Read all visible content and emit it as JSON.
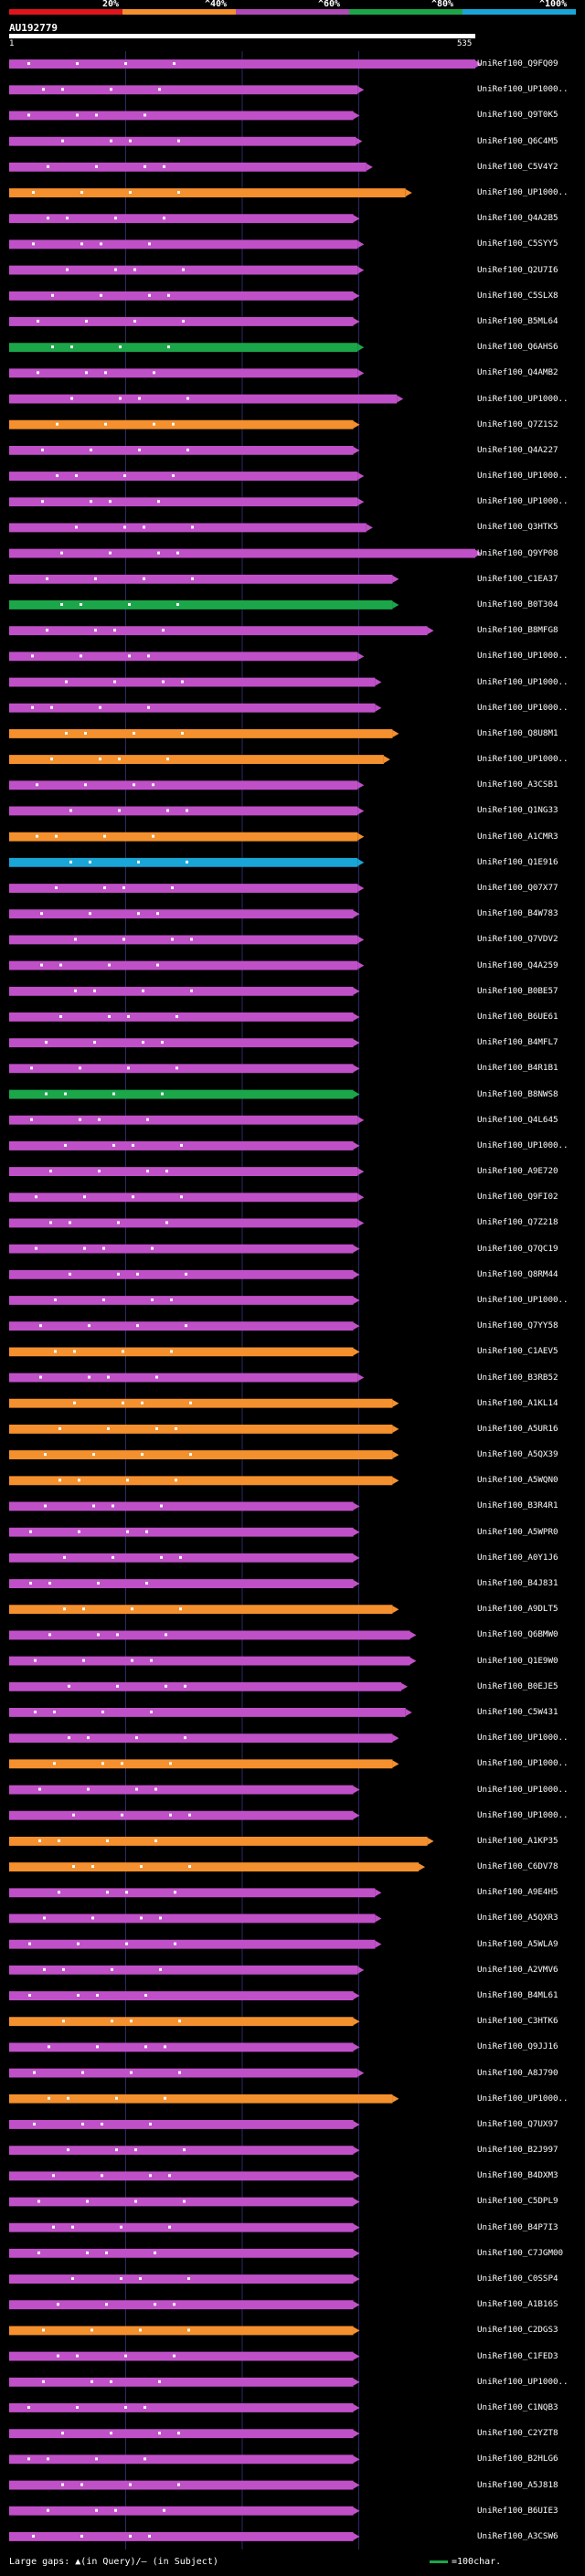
{
  "legend": {
    "percent_labels": [
      "20%",
      "^40%",
      "^60%",
      "^80%",
      "^100%"
    ],
    "colors": [
      "#e0151b",
      "#f4902e",
      "#b04ab6",
      "#1ca64a",
      "#19a6d6"
    ]
  },
  "query": {
    "name": "AU192779",
    "start": "1",
    "end": "535"
  },
  "footer": {
    "gaps_label": "Large gaps:",
    "query_gap": "(in Query)",
    "subject_gap": "(in Subject)",
    "separator": "/",
    "scale_label": "=100char."
  },
  "chart_data": {
    "type": "alignment",
    "query_length": 535,
    "hits": [
      {
        "label": "UniRef100_Q9FQ09",
        "color": "#c050c8",
        "end": 535
      },
      {
        "label": "UniRef100_UP1000..",
        "color": "#c050c8",
        "end": 400
      },
      {
        "label": "UniRef100_Q9T0K5",
        "color": "#c050c8",
        "end": 395
      },
      {
        "label": "UniRef100_Q6C4M5",
        "color": "#c050c8",
        "end": 398
      },
      {
        "label": "UniRef100_C5V4Y2",
        "color": "#c050c8",
        "end": 410
      },
      {
        "label": "UniRef100_UP1000..",
        "color": "#f4902e",
        "end": 455
      },
      {
        "label": "UniRef100_Q4A2B5",
        "color": "#c050c8",
        "end": 395
      },
      {
        "label": "UniRef100_C5SYY5",
        "color": "#c050c8",
        "end": 400
      },
      {
        "label": "UniRef100_Q2U7I6",
        "color": "#c050c8",
        "end": 400
      },
      {
        "label": "UniRef100_C5SLX8",
        "color": "#c050c8",
        "end": 395
      },
      {
        "label": "UniRef100_B5ML64",
        "color": "#c050c8",
        "end": 395
      },
      {
        "label": "UniRef100_Q6AHS6",
        "color": "#1ca64a",
        "end": 400
      },
      {
        "label": "UniRef100_Q4AMB2",
        "color": "#c050c8",
        "end": 400
      },
      {
        "label": "UniRef100_UP1000..",
        "color": "#c050c8",
        "end": 445
      },
      {
        "label": "UniRef100_Q7Z1S2",
        "color": "#f4902e",
        "end": 395
      },
      {
        "label": "UniRef100_Q4A227",
        "color": "#c050c8",
        "end": 395
      },
      {
        "label": "UniRef100_UP1000..",
        "color": "#c050c8",
        "end": 400
      },
      {
        "label": "UniRef100_UP1000..",
        "color": "#c050c8",
        "end": 400
      },
      {
        "label": "UniRef100_Q3HTK5",
        "color": "#c050c8",
        "end": 410
      },
      {
        "label": "UniRef100_Q9YP08",
        "color": "#c050c8",
        "end": 535
      },
      {
        "label": "UniRef100_C1EA37",
        "color": "#c050c8",
        "end": 440
      },
      {
        "label": "UniRef100_B0T304",
        "color": "#1ca64a",
        "end": 440
      },
      {
        "label": "UniRef100_B8MFG8",
        "color": "#c050c8",
        "end": 480
      },
      {
        "label": "UniRef100_UP1000..",
        "color": "#c050c8",
        "end": 400
      },
      {
        "label": "UniRef100_UP1000..",
        "color": "#c050c8",
        "end": 420
      },
      {
        "label": "UniRef100_UP1000..",
        "color": "#c050c8",
        "end": 420
      },
      {
        "label": "UniRef100_Q8U8M1",
        "color": "#f4902e",
        "end": 440
      },
      {
        "label": "UniRef100_UP1000..",
        "color": "#f4902e",
        "end": 430
      },
      {
        "label": "UniRef100_A3CSB1",
        "color": "#c050c8",
        "end": 400
      },
      {
        "label": "UniRef100_Q1NG33",
        "color": "#c050c8",
        "end": 400
      },
      {
        "label": "UniRef100_A1CMR3",
        "color": "#f4902e",
        "end": 400
      },
      {
        "label": "UniRef100_Q1E916",
        "color": "#19a6d6",
        "end": 400
      },
      {
        "label": "UniRef100_Q07X77",
        "color": "#c050c8",
        "end": 400
      },
      {
        "label": "UniRef100_B4W783",
        "color": "#c050c8",
        "end": 395
      },
      {
        "label": "UniRef100_Q7VDV2",
        "color": "#c050c8",
        "end": 400
      },
      {
        "label": "UniRef100_Q4A259",
        "color": "#c050c8",
        "end": 400
      },
      {
        "label": "UniRef100_B0BE57",
        "color": "#c050c8",
        "end": 395
      },
      {
        "label": "UniRef100_B6UE61",
        "color": "#c050c8",
        "end": 395
      },
      {
        "label": "UniRef100_B4MFL7",
        "color": "#c050c8",
        "end": 395
      },
      {
        "label": "UniRef100_B4R1B1",
        "color": "#c050c8",
        "end": 395
      },
      {
        "label": "UniRef100_B8NWS8",
        "color": "#1ca64a",
        "end": 395
      },
      {
        "label": "UniRef100_Q4L645",
        "color": "#c050c8",
        "end": 400
      },
      {
        "label": "UniRef100_UP1000..",
        "color": "#c050c8",
        "end": 395
      },
      {
        "label": "UniRef100_A9E720",
        "color": "#c050c8",
        "end": 400
      },
      {
        "label": "UniRef100_Q9FI02",
        "color": "#c050c8",
        "end": 400
      },
      {
        "label": "UniRef100_Q7Z218",
        "color": "#c050c8",
        "end": 400
      },
      {
        "label": "UniRef100_Q7QC19",
        "color": "#c050c8",
        "end": 395
      },
      {
        "label": "UniRef100_Q8RM44",
        "color": "#c050c8",
        "end": 395
      },
      {
        "label": "UniRef100_UP1000..",
        "color": "#c050c8",
        "end": 395
      },
      {
        "label": "UniRef100_Q7YY58",
        "color": "#c050c8",
        "end": 395
      },
      {
        "label": "UniRef100_C1AEV5",
        "color": "#f4902e",
        "end": 395
      },
      {
        "label": "UniRef100_B3RB52",
        "color": "#c050c8",
        "end": 400
      },
      {
        "label": "UniRef100_A1KL14",
        "color": "#f4902e",
        "end": 440
      },
      {
        "label": "UniRef100_A5UR16",
        "color": "#f4902e",
        "end": 440
      },
      {
        "label": "UniRef100_A5QX39",
        "color": "#f4902e",
        "end": 440
      },
      {
        "label": "UniRef100_A5WQN0",
        "color": "#f4902e",
        "end": 440
      },
      {
        "label": "UniRef100_B3R4R1",
        "color": "#c050c8",
        "end": 395
      },
      {
        "label": "UniRef100_A5WPR0",
        "color": "#c050c8",
        "end": 395
      },
      {
        "label": "UniRef100_A0Y1J6",
        "color": "#c050c8",
        "end": 395
      },
      {
        "label": "UniRef100_B4J831",
        "color": "#c050c8",
        "end": 395
      },
      {
        "label": "UniRef100_A9DLT5",
        "color": "#f4902e",
        "end": 440
      },
      {
        "label": "UniRef100_Q6BMW0",
        "color": "#c050c8",
        "end": 460
      },
      {
        "label": "UniRef100_Q1E9W0",
        "color": "#c050c8",
        "end": 460
      },
      {
        "label": "UniRef100_B0EJE5",
        "color": "#c050c8",
        "end": 450
      },
      {
        "label": "UniRef100_C5W431",
        "color": "#c050c8",
        "end": 455
      },
      {
        "label": "UniRef100_UP1000..",
        "color": "#c050c8",
        "end": 440
      },
      {
        "label": "UniRef100_UP1000..",
        "color": "#f4902e",
        "end": 440
      },
      {
        "label": "UniRef100_UP1000..",
        "color": "#c050c8",
        "end": 395
      },
      {
        "label": "UniRef100_UP1000..",
        "color": "#c050c8",
        "end": 395
      },
      {
        "label": "UniRef100_A1KP35",
        "color": "#f4902e",
        "end": 480
      },
      {
        "label": "UniRef100_C6DV78",
        "color": "#f4902e",
        "end": 470
      },
      {
        "label": "UniRef100_A9E4H5",
        "color": "#c050c8",
        "end": 420
      },
      {
        "label": "UniRef100_A5QXR3",
        "color": "#c050c8",
        "end": 420
      },
      {
        "label": "UniRef100_A5WLA9",
        "color": "#c050c8",
        "end": 420
      },
      {
        "label": "UniRef100_A2VMV6",
        "color": "#c050c8",
        "end": 400
      },
      {
        "label": "UniRef100_B4ML61",
        "color": "#c050c8",
        "end": 395
      },
      {
        "label": "UniRef100_C3HTK6",
        "color": "#f4902e",
        "end": 395
      },
      {
        "label": "UniRef100_Q9JJ16",
        "color": "#c050c8",
        "end": 395
      },
      {
        "label": "UniRef100_A8J790",
        "color": "#c050c8",
        "end": 400
      },
      {
        "label": "UniRef100_UP1000..",
        "color": "#f4902e",
        "end": 440
      },
      {
        "label": "UniRef100_Q7UX97",
        "color": "#c050c8",
        "end": 395
      },
      {
        "label": "UniRef100_B2J997",
        "color": "#c050c8",
        "end": 395
      },
      {
        "label": "UniRef100_B4DXM3",
        "color": "#c050c8",
        "end": 395
      },
      {
        "label": "UniRef100_C5DPL9",
        "color": "#c050c8",
        "end": 395
      },
      {
        "label": "UniRef100_B4P7I3",
        "color": "#c050c8",
        "end": 395
      },
      {
        "label": "UniRef100_C7JGM00",
        "color": "#c050c8",
        "end": 395
      },
      {
        "label": "UniRef100_C0SSP4",
        "color": "#c050c8",
        "end": 395
      },
      {
        "label": "UniRef100_A1B16S",
        "color": "#c050c8",
        "end": 395
      },
      {
        "label": "UniRef100_C2DGS3",
        "color": "#f4902e",
        "end": 395
      },
      {
        "label": "UniRef100_C1FED3",
        "color": "#c050c8",
        "end": 395
      },
      {
        "label": "UniRef100_UP1000..",
        "color": "#c050c8",
        "end": 395
      },
      {
        "label": "UniRef100_C1NQB3",
        "color": "#c050c8",
        "end": 395
      },
      {
        "label": "UniRef100_C2YZT8",
        "color": "#c050c8",
        "end": 395
      },
      {
        "label": "UniRef100_B2HLG6",
        "color": "#c050c8",
        "end": 395
      },
      {
        "label": "UniRef100_A5J818",
        "color": "#c050c8",
        "end": 395
      },
      {
        "label": "UniRef100_B6UIE3",
        "color": "#c050c8",
        "end": 395
      },
      {
        "label": "UniRef100_A3CSW6",
        "color": "#c050c8",
        "end": 395
      }
    ]
  }
}
